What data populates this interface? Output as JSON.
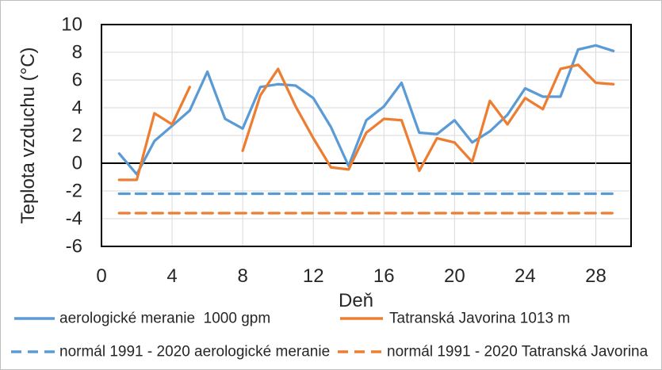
{
  "chart_data": {
    "type": "line",
    "title": "",
    "xlabel": "Deň",
    "ylabel": "Teplota vzduchu (°C)",
    "xlim": [
      0,
      30
    ],
    "ylim": [
      -6,
      10
    ],
    "xticks": [
      0,
      4,
      8,
      12,
      16,
      20,
      24,
      28
    ],
    "yticks": [
      10,
      8,
      6,
      4,
      2,
      0,
      -2,
      -4,
      -6
    ],
    "grid": true,
    "legend_position": "bottom",
    "x_days": [
      1,
      2,
      3,
      4,
      5,
      6,
      7,
      8,
      9,
      10,
      11,
      12,
      13,
      14,
      15,
      16,
      17,
      18,
      19,
      20,
      21,
      22,
      23,
      24,
      25,
      26,
      27,
      28,
      29
    ],
    "series": [
      {
        "name": "aerologické meranie  1000 gpm",
        "color": "#5B9BD5",
        "style": "solid",
        "values": [
          0.7,
          -0.8,
          1.6,
          2.7,
          3.8,
          6.6,
          3.2,
          2.5,
          5.5,
          5.7,
          5.6,
          4.7,
          2.6,
          -0.2,
          3.1,
          4.1,
          5.8,
          2.2,
          2.1,
          3.1,
          1.5,
          2.3,
          3.5,
          5.4,
          4.8,
          4.8,
          8.2,
          8.5,
          8.1
        ]
      },
      {
        "name": "Tatranská Javorina 1013 m",
        "color": "#ED7D31",
        "style": "solid",
        "values": [
          -1.2,
          -1.2,
          3.6,
          2.8,
          5.5,
          null,
          null,
          0.9,
          4.9,
          6.8,
          4.1,
          1.8,
          -0.3,
          -0.45,
          2.2,
          3.2,
          3.1,
          -0.55,
          1.8,
          1.5,
          0.1,
          4.5,
          2.8,
          4.7,
          3.9,
          6.8,
          7.1,
          5.8,
          5.7
        ]
      },
      {
        "name": "normál 1991 - 2020 aerologické meranie",
        "color": "#5B9BD5",
        "style": "dashed",
        "constant": -2.2
      },
      {
        "name": "normál 1991 - 2020 Tatranská Javorina",
        "color": "#ED7D31",
        "style": "dashed",
        "constant": -3.6
      }
    ],
    "colors": {
      "blue": "#5B9BD5",
      "orange": "#ED7D31",
      "gridline": "#D9D9D9",
      "axis": "#000000"
    }
  }
}
